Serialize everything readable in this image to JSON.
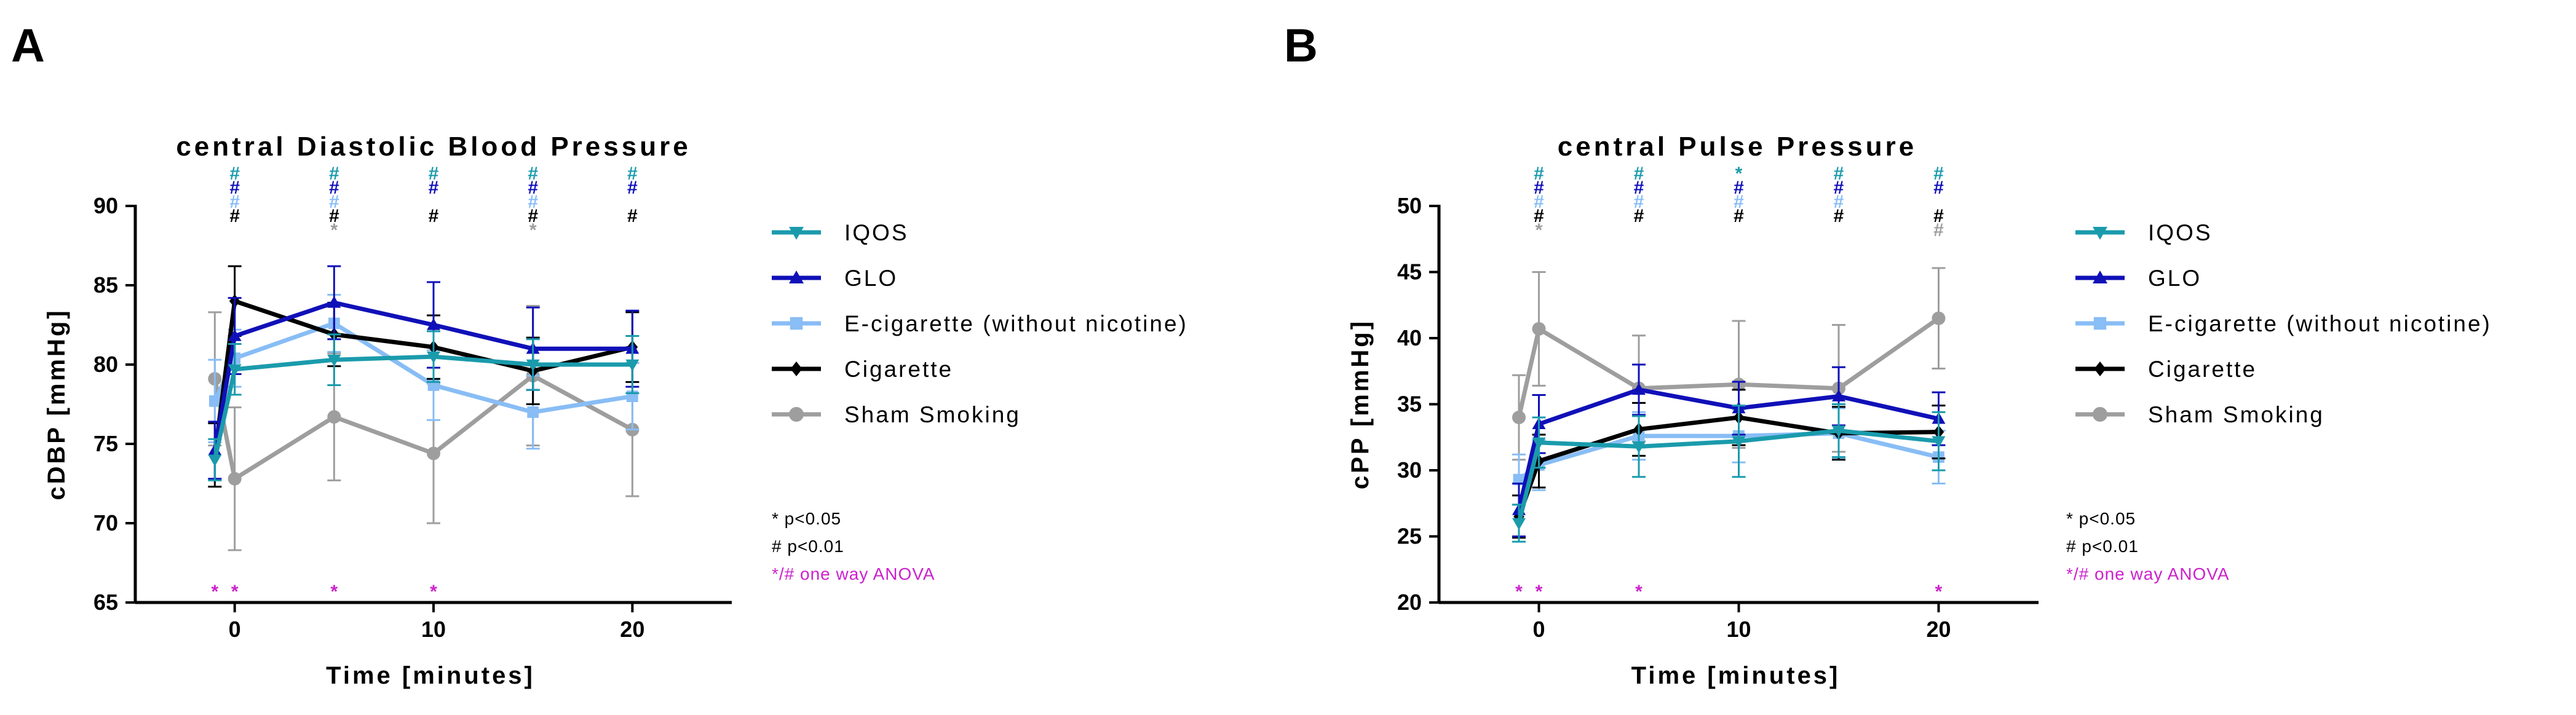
{
  "panels": [
    {
      "letter": "A"
    },
    {
      "letter": "B"
    }
  ],
  "colors": {
    "IQOS": "#1a9bac",
    "GLO": "#1010b8",
    "E-cigarette (without nicotine)": "#88bdf5",
    "Cigarette": "#000000",
    "Sham Smoking": "#9e9e9e",
    "anova": "#cc22cc",
    "sig_black": "#000000",
    "sig_grey": "#9e9e9e"
  },
  "legend": {
    "entries": [
      {
        "name": "IQOS",
        "marker": "triangle-down"
      },
      {
        "name": "GLO",
        "marker": "triangle-up"
      },
      {
        "name": "E-cigarette (without nicotine)",
        "marker": "square"
      },
      {
        "name": "Cigarette",
        "marker": "diamond"
      },
      {
        "name": "Sham Smoking",
        "marker": "circle"
      }
    ]
  },
  "notes": {
    "star": "* p<0.05",
    "hash": "# p<0.01",
    "anova": "*/# one way ANOVA"
  },
  "chart_data": [
    {
      "type": "line",
      "title": "central Diastolic Blood Pressure",
      "xlabel": "Time [minutes]",
      "ylabel": "cDBP [mmHg]",
      "xlim": [
        -5,
        25
      ],
      "ylim": [
        65,
        90
      ],
      "xticks": [
        0,
        10,
        20
      ],
      "yticks": [
        65,
        70,
        75,
        80,
        85,
        90
      ],
      "x": [
        -1,
        0,
        5,
        10,
        15,
        20
      ],
      "series": [
        {
          "name": "IQOS",
          "values": [
            74.0,
            79.7,
            80.3,
            80.5,
            80.0,
            80.0
          ],
          "err": [
            1.3,
            1.6,
            1.6,
            1.6,
            1.6,
            1.8
          ]
        },
        {
          "name": "GLO",
          "values": [
            74.6,
            81.8,
            83.9,
            82.5,
            81.0,
            81.0
          ],
          "err": [
            1.8,
            2.4,
            2.3,
            2.7,
            2.6,
            2.4
          ]
        },
        {
          "name": "E-cigarette (without nicotine)",
          "values": [
            77.7,
            80.4,
            82.6,
            78.7,
            77.0,
            78.0
          ],
          "err": [
            2.6,
            1.8,
            1.8,
            2.2,
            2.3,
            2.1
          ]
        },
        {
          "name": "Cigarette",
          "values": [
            74.3,
            84.0,
            81.9,
            81.1,
            79.6,
            81.1
          ],
          "err": [
            2.0,
            2.2,
            2.0,
            2.0,
            2.1,
            2.2
          ]
        },
        {
          "name": "Sham Smoking",
          "values": [
            79.1,
            72.8,
            76.7,
            74.4,
            79.3,
            75.9
          ],
          "err": [
            4.2,
            4.5,
            4.0,
            4.4,
            4.4,
            4.2
          ]
        }
      ],
      "significance": [
        {
          "x": 0,
          "rows": [
            [
              "#",
              "IQOS"
            ],
            [
              "#",
              "GLO"
            ],
            [
              "#",
              "E-cigarette (without nicotine)"
            ],
            [
              "#",
              "Cigarette"
            ]
          ]
        },
        {
          "x": 5,
          "rows": [
            [
              "#",
              "IQOS"
            ],
            [
              "#",
              "GLO"
            ],
            [
              "#",
              "E-cigarette (without nicotine)"
            ],
            [
              "#",
              "Cigarette"
            ],
            [
              "*",
              "Sham Smoking"
            ]
          ]
        },
        {
          "x": 10,
          "rows": [
            [
              "#",
              "IQOS"
            ],
            [
              "#",
              "GLO"
            ],
            [
              "",
              ""
            ],
            [
              "#",
              "Cigarette"
            ]
          ]
        },
        {
          "x": 15,
          "rows": [
            [
              "#",
              "IQOS"
            ],
            [
              "#",
              "GLO"
            ],
            [
              "#",
              "E-cigarette (without nicotine)"
            ],
            [
              "#",
              "Cigarette"
            ],
            [
              "*",
              "Sham Smoking"
            ]
          ]
        },
        {
          "x": 20,
          "rows": [
            [
              "#",
              "IQOS"
            ],
            [
              "#",
              "GLO"
            ],
            [
              "",
              ""
            ],
            [
              "#",
              "Cigarette"
            ]
          ]
        }
      ],
      "anova_marks": [
        -1,
        0,
        5,
        10
      ]
    },
    {
      "type": "line",
      "title": "central Pulse Pressure",
      "xlabel": "Time [minutes]",
      "ylabel": "cPP [mmHg]",
      "xlim": [
        -5,
        25
      ],
      "ylim": [
        20,
        50
      ],
      "xticks": [
        0,
        10,
        20
      ],
      "yticks": [
        20,
        25,
        30,
        35,
        40,
        45,
        50
      ],
      "x": [
        -1,
        0,
        5,
        10,
        15,
        20
      ],
      "series": [
        {
          "name": "IQOS",
          "values": [
            26.0,
            32.1,
            31.8,
            32.2,
            33.0,
            32.2
          ],
          "err": [
            1.4,
            1.9,
            2.3,
            2.7,
            2.0,
            2.2
          ]
        },
        {
          "name": "GLO",
          "values": [
            27.0,
            33.5,
            36.1,
            34.7,
            35.6,
            33.9
          ],
          "err": [
            2.0,
            2.2,
            1.9,
            2.0,
            2.2,
            2.0
          ]
        },
        {
          "name": "E-cigarette (without nicotine)",
          "values": [
            29.3,
            30.4,
            32.6,
            32.6,
            32.8,
            31.0
          ],
          "err": [
            1.9,
            1.9,
            1.8,
            2.0,
            1.9,
            2.0
          ]
        },
        {
          "name": "Cigarette",
          "values": [
            26.5,
            30.7,
            33.1,
            34.0,
            32.8,
            32.9
          ],
          "err": [
            1.6,
            2.0,
            2.0,
            2.1,
            2.0,
            2.0
          ]
        },
        {
          "name": "Sham Smoking",
          "values": [
            34.0,
            40.7,
            36.2,
            36.5,
            36.2,
            41.5
          ],
          "err": [
            3.2,
            4.3,
            4.0,
            4.8,
            4.8,
            3.8
          ]
        }
      ],
      "significance": [
        {
          "x": 0,
          "rows": [
            [
              "#",
              "IQOS"
            ],
            [
              "#",
              "GLO"
            ],
            [
              "#",
              "E-cigarette (without nicotine)"
            ],
            [
              "#",
              "Cigarette"
            ],
            [
              "*",
              "Sham Smoking"
            ]
          ]
        },
        {
          "x": 5,
          "rows": [
            [
              "#",
              "IQOS"
            ],
            [
              "#",
              "GLO"
            ],
            [
              "#",
              "E-cigarette (without nicotine)"
            ],
            [
              "#",
              "Cigarette"
            ]
          ]
        },
        {
          "x": 10,
          "rows": [
            [
              "*",
              "IQOS"
            ],
            [
              "#",
              "GLO"
            ],
            [
              "#",
              "E-cigarette (without nicotine)"
            ],
            [
              "#",
              "Cigarette"
            ]
          ]
        },
        {
          "x": 15,
          "rows": [
            [
              "#",
              "IQOS"
            ],
            [
              "#",
              "GLO"
            ],
            [
              "#",
              "E-cigarette (without nicotine)"
            ],
            [
              "#",
              "Cigarette"
            ]
          ]
        },
        {
          "x": 20,
          "rows": [
            [
              "#",
              "IQOS"
            ],
            [
              "#",
              "GLO"
            ],
            [
              "",
              ""
            ],
            [
              "#",
              "Cigarette"
            ],
            [
              "#",
              "Sham Smoking"
            ]
          ]
        }
      ],
      "anova_marks": [
        -1,
        0,
        5,
        20
      ]
    }
  ]
}
